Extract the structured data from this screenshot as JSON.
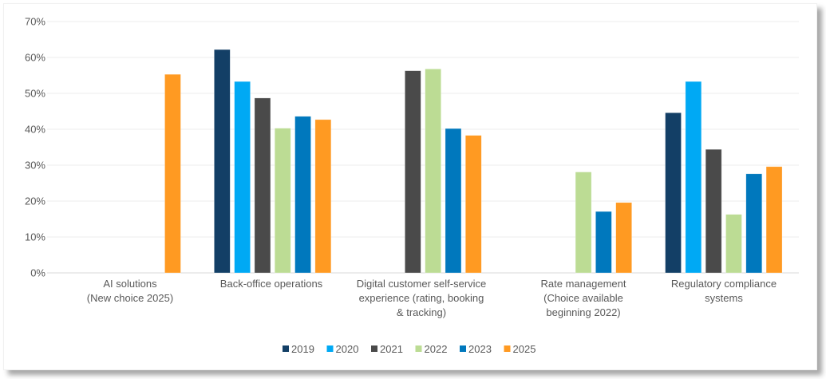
{
  "chart_data": {
    "type": "bar",
    "title": "",
    "xlabel": "",
    "ylabel": "",
    "ylim": [
      0,
      70
    ],
    "yticks": [
      "0%",
      "10%",
      "20%",
      "30%",
      "40%",
      "50%",
      "60%",
      "70%"
    ],
    "ytick_values": [
      0,
      10,
      20,
      30,
      40,
      50,
      60,
      70
    ],
    "grid": true,
    "legend_position": "bottom",
    "categories": [
      [
        "AI solutions",
        "(New choice 2025)"
      ],
      [
        "Back-office operations"
      ],
      [
        "Digital customer self-service",
        "experience (rating, booking",
        "& tracking)"
      ],
      [
        "Rate management",
        "(Choice available",
        "beginning 2022)"
      ],
      [
        "Regulatory compliance",
        "systems"
      ]
    ],
    "series": [
      {
        "name": "2019",
        "color": "#133F66",
        "values": [
          null,
          62.2,
          null,
          null,
          44.6
        ]
      },
      {
        "name": "2020",
        "color": "#00A9F4",
        "values": [
          null,
          53.3,
          null,
          null,
          53.3
        ]
      },
      {
        "name": "2021",
        "color": "#4A4A4A",
        "values": [
          null,
          48.7,
          56.3,
          null,
          34.4
        ]
      },
      {
        "name": "2022",
        "color": "#BCDC94",
        "values": [
          null,
          40.3,
          56.8,
          28.1,
          16.3
        ]
      },
      {
        "name": "2023",
        "color": "#0078BD",
        "values": [
          null,
          43.6,
          40.2,
          17.1,
          27.6
        ]
      },
      {
        "name": "2025",
        "color": "#FF9A22",
        "values": [
          55.3,
          42.7,
          38.3,
          19.6,
          29.6
        ]
      }
    ]
  }
}
